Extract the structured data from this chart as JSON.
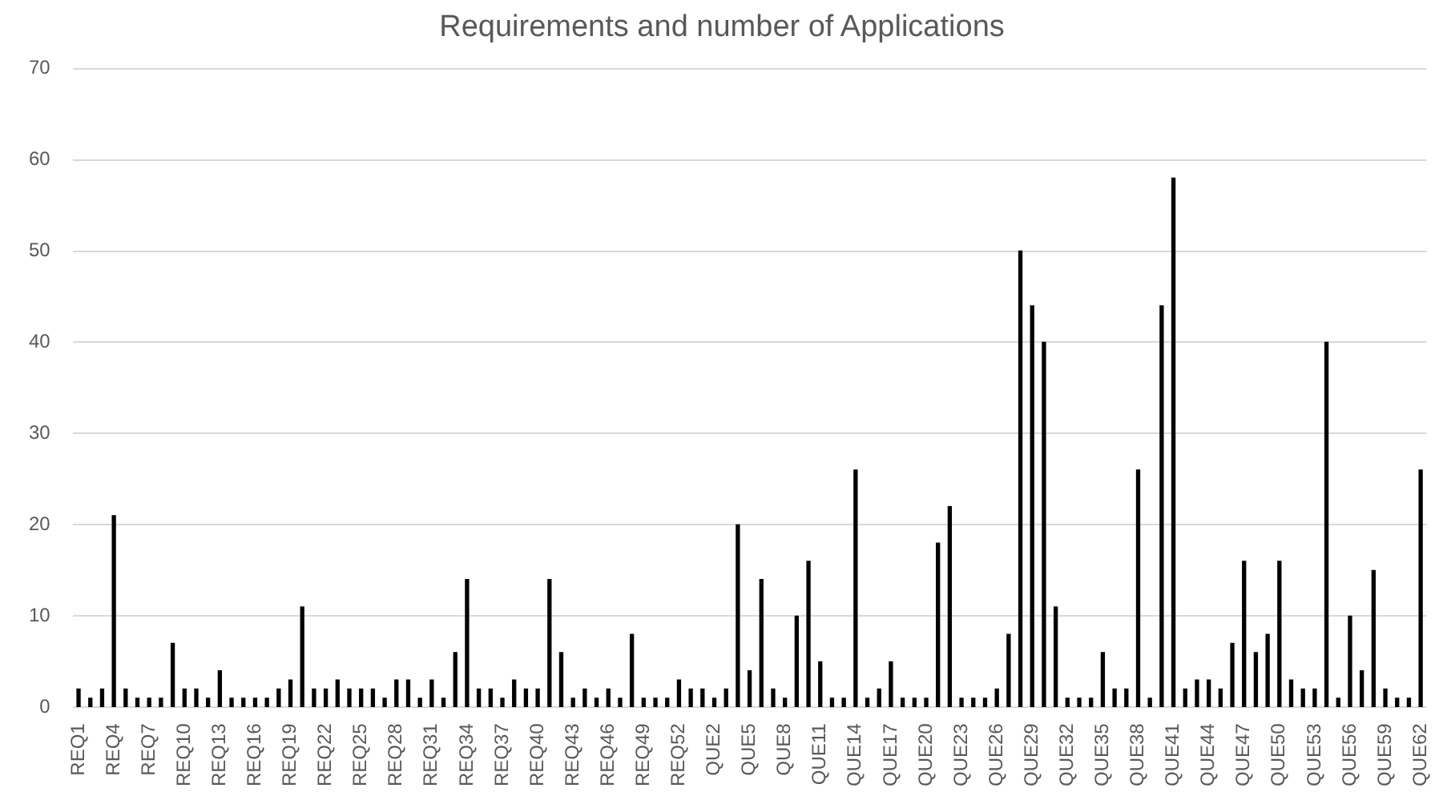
{
  "chart_data": {
    "type": "bar",
    "title": "Requirements and number of Applications",
    "categories": [
      "REQ1",
      null,
      null,
      "REQ4",
      null,
      null,
      "REQ7",
      null,
      null,
      "REQ10",
      null,
      null,
      "REQ13",
      null,
      null,
      "REQ16",
      null,
      null,
      "REQ19",
      null,
      null,
      "REQ22",
      null,
      null,
      "REQ25",
      null,
      null,
      "REQ28",
      null,
      null,
      "REQ31",
      null,
      null,
      "REQ34",
      null,
      null,
      "REQ37",
      null,
      null,
      "REQ40",
      null,
      null,
      "REQ43",
      null,
      null,
      "REQ46",
      null,
      null,
      "REQ49",
      null,
      null,
      "REQ52",
      null,
      null,
      "QUE2",
      null,
      null,
      "QUE5",
      null,
      null,
      "QUE8",
      null,
      null,
      "QUE11",
      null,
      null,
      "QUE14",
      null,
      null,
      "QUE17",
      null,
      null,
      "QUE20",
      null,
      null,
      "QUE23",
      null,
      null,
      "QUE26",
      null,
      null,
      "QUE29",
      null,
      null,
      "QUE32",
      null,
      null,
      "QUE35",
      null,
      null,
      "QUE38",
      null,
      null,
      "QUE41",
      null,
      null,
      "QUE44",
      null,
      null,
      "QUE47",
      null,
      null,
      "QUE50",
      null,
      null,
      "QUE53",
      null,
      null,
      "QUE56",
      null,
      null,
      "QUE59",
      null,
      null,
      "QUE62"
    ],
    "values": [
      2,
      1,
      2,
      21,
      2,
      1,
      1,
      1,
      7,
      2,
      2,
      1,
      4,
      1,
      1,
      1,
      1,
      2,
      3,
      11,
      2,
      2,
      3,
      2,
      2,
      2,
      1,
      3,
      3,
      1,
      3,
      1,
      6,
      14,
      2,
      2,
      1,
      3,
      2,
      2,
      14,
      6,
      1,
      2,
      1,
      2,
      1,
      8,
      1,
      1,
      1,
      3,
      2,
      2,
      1,
      2,
      20,
      4,
      14,
      2,
      1,
      10,
      16,
      5,
      1,
      1,
      26,
      1,
      2,
      5,
      1,
      1,
      1,
      18,
      22,
      1,
      1,
      1,
      2,
      8,
      50,
      44,
      40,
      11,
      1,
      1,
      1,
      6,
      2,
      2,
      26,
      1,
      44,
      58,
      2,
      3,
      3,
      2,
      7,
      16,
      6,
      8,
      16,
      3,
      2,
      2,
      40,
      1,
      10,
      4,
      15,
      2,
      1,
      1,
      26
    ],
    "color": "#000000",
    "ylim": [
      0,
      70
    ],
    "yticks": [
      0,
      10,
      20,
      30,
      40,
      50,
      60,
      70
    ],
    "grid": "y",
    "legend": false
  }
}
